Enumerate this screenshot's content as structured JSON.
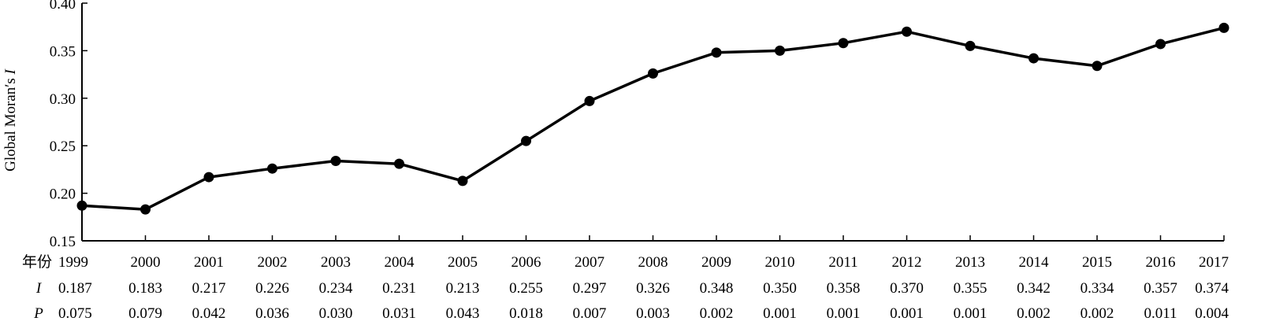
{
  "chart_data": {
    "type": "line",
    "ylabel_main": "Global Moran′s ",
    "ylabel_italic": "I",
    "ylim": [
      0.15,
      0.4
    ],
    "yticks": [
      "0.15",
      "0.20",
      "0.25",
      "0.30",
      "0.35",
      "0.40"
    ],
    "grid": false,
    "table_headers": {
      "year": "年份",
      "i": "I",
      "p": "P"
    },
    "categories": [
      "1999",
      "2000",
      "2001",
      "2002",
      "2003",
      "2004",
      "2005",
      "2006",
      "2007",
      "2008",
      "2009",
      "2010",
      "2011",
      "2012",
      "2013",
      "2014",
      "2015",
      "2016",
      "2017"
    ],
    "i_labels": [
      "0.187",
      "0.183",
      "0.217",
      "0.226",
      "0.234",
      "0.231",
      "0.213",
      "0.255",
      "0.297",
      "0.326",
      "0.348",
      "0.350",
      "0.358",
      "0.370",
      "0.355",
      "0.342",
      "0.334",
      "0.357",
      "0.374"
    ],
    "p_labels": [
      "0.075",
      "0.079",
      "0.042",
      "0.036",
      "0.030",
      "0.031",
      "0.043",
      "0.018",
      "0.007",
      "0.003",
      "0.002",
      "0.001",
      "0.001",
      "0.001",
      "0.001",
      "0.002",
      "0.002",
      "0.011",
      "0.004"
    ],
    "values": [
      0.187,
      0.183,
      0.217,
      0.226,
      0.234,
      0.231,
      0.213,
      0.255,
      0.297,
      0.326,
      0.348,
      0.35,
      0.358,
      0.37,
      0.355,
      0.342,
      0.334,
      0.357,
      0.374
    ],
    "line_color": "#000000",
    "marker_color": "#000000"
  }
}
